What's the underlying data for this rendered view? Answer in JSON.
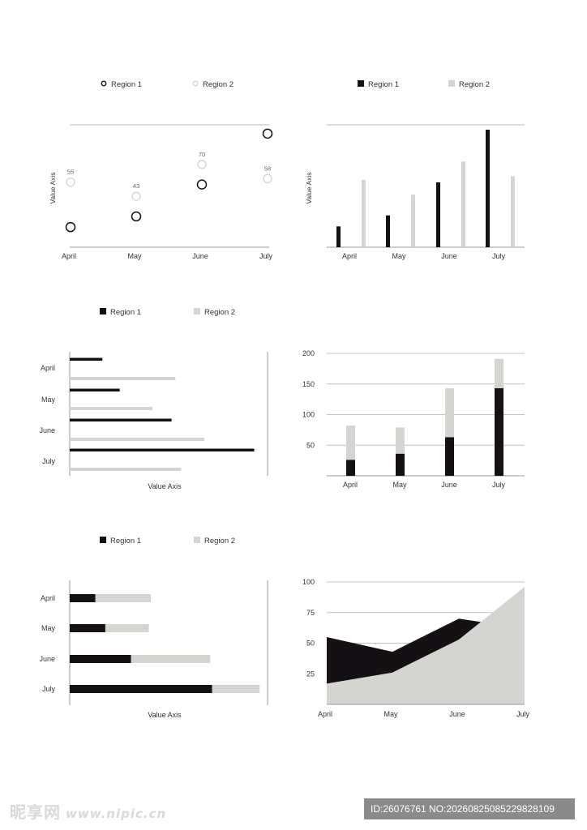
{
  "colors": {
    "region1": "#141013",
    "region2": "#d4d5d1",
    "axis": "#9a9a9a",
    "text": "#333333"
  },
  "chart_data": [
    {
      "type": "scatter",
      "legend": [
        {
          "name": "Region 1",
          "marker": "ring"
        },
        {
          "name": "Region 2",
          "marker": "ring-light"
        }
      ],
      "legend_placement": "top",
      "categories": [
        "April",
        "May",
        "June",
        "July"
      ],
      "ylabel": "Value Axis",
      "ylim": [
        0,
        100
      ],
      "series": [
        {
          "name": "Region 1",
          "values": [
            17,
            26,
            53,
            96
          ]
        },
        {
          "name": "Region 2",
          "values": [
            55,
            43,
            70,
            58
          ],
          "labels": [
            "55",
            "43",
            "70",
            "58"
          ]
        }
      ],
      "grid": "top-line"
    },
    {
      "type": "bar",
      "legend": [
        {
          "name": "Region 1"
        },
        {
          "name": "Region 2"
        }
      ],
      "legend_placement": "top",
      "categories": [
        "April",
        "May",
        "June",
        "July"
      ],
      "ylabel": "Value Axis",
      "ylim": [
        0,
        100
      ],
      "series": [
        {
          "name": "Region 1",
          "values": [
            17,
            26,
            53,
            96
          ]
        },
        {
          "name": "Region 2",
          "values": [
            55,
            43,
            70,
            58
          ]
        }
      ],
      "grid": "top-line"
    },
    {
      "type": "bar",
      "orientation": "horizontal",
      "legend": [
        {
          "name": "Region 1"
        },
        {
          "name": "Region 2"
        }
      ],
      "legend_placement": "top",
      "categories": [
        "April",
        "May",
        "June",
        "July"
      ],
      "xlabel": "Value Axis",
      "xlim": [
        0,
        100
      ],
      "series": [
        {
          "name": "Region 1",
          "values": [
            17,
            26,
            53,
            96
          ]
        },
        {
          "name": "Region 2",
          "values": [
            55,
            43,
            70,
            58
          ]
        }
      ]
    },
    {
      "type": "bar",
      "stacked": true,
      "categories": [
        "April",
        "May",
        "June",
        "July"
      ],
      "ylim": [
        0,
        200
      ],
      "yticks": [
        "50",
        "100",
        "150",
        "200"
      ],
      "series": [
        {
          "name": "Region 1",
          "values": [
            26,
            36,
            63,
            143
          ]
        },
        {
          "name": "Region 2",
          "values": [
            56,
            43,
            80,
            48
          ]
        }
      ],
      "grid": true
    },
    {
      "type": "bar",
      "orientation": "horizontal",
      "stacked": true,
      "legend": [
        {
          "name": "Region 1"
        },
        {
          "name": "Region 2"
        }
      ],
      "legend_placement": "top",
      "categories": [
        "April",
        "May",
        "June",
        "July"
      ],
      "xlabel": "Value Axis",
      "xlim": [
        0,
        100
      ],
      "series": [
        {
          "name": "Region 1",
          "values": [
            13,
            18,
            31,
            72
          ]
        },
        {
          "name": "Region 2",
          "values": [
            28,
            22,
            40,
            24
          ]
        }
      ]
    },
    {
      "type": "area",
      "categories": [
        "April",
        "May",
        "June",
        "July"
      ],
      "ylim": [
        0,
        100
      ],
      "yticks": [
        "25",
        "50",
        "75",
        "100"
      ],
      "series": [
        {
          "name": "Region 1",
          "values": [
            55,
            43,
            70,
            62
          ]
        },
        {
          "name": "Region 2",
          "values": [
            17,
            26,
            53,
            96
          ]
        }
      ],
      "grid": true
    }
  ],
  "watermark": {
    "left_text": "昵享网",
    "left_url": "www.nipic.cn",
    "right_text": "ID:26076761 NO:20260825085229828109"
  }
}
